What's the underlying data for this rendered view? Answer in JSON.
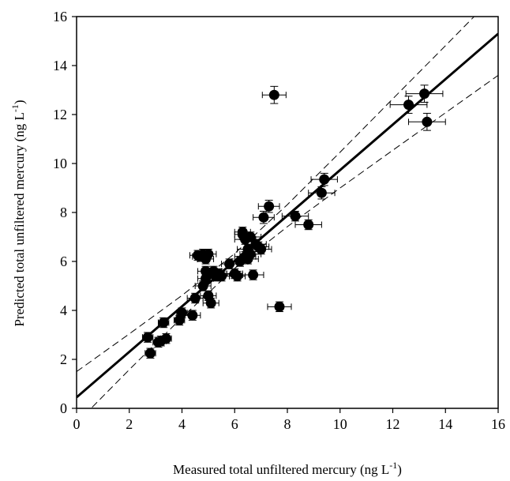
{
  "chart_data": {
    "type": "scatter",
    "xlabel": [
      "Measured total unfiltered mercury (ng L",
      "-1",
      ")"
    ],
    "ylabel": [
      "Predicted total unfiltered mercury (ng L",
      "-1",
      ")"
    ],
    "x": [
      2.7,
      2.8,
      3.1,
      3.2,
      3.3,
      3.4,
      3.9,
      4.0,
      4.4,
      4.5,
      4.7,
      4.8,
      4.9,
      4.9,
      4.9,
      5.0,
      5.0,
      5.1,
      5.1,
      5.2,
      5.3,
      5.4,
      5.5,
      5.8,
      6.0,
      6.1,
      6.2,
      6.3,
      6.4,
      6.4,
      6.5,
      6.5,
      6.6,
      6.7,
      6.8,
      6.9,
      7.0,
      7.1,
      7.3,
      7.5,
      7.7,
      8.3,
      8.8,
      9.3,
      9.4,
      12.6,
      13.2,
      13.3,
      4.6,
      6.3,
      6.6,
      4.8
    ],
    "y": [
      2.9,
      2.25,
      2.7,
      2.75,
      3.5,
      2.85,
      3.6,
      3.9,
      3.8,
      4.5,
      6.2,
      6.3,
      6.1,
      5.6,
      5.3,
      4.6,
      6.3,
      4.3,
      5.5,
      5.6,
      5.4,
      5.5,
      5.4,
      5.9,
      5.5,
      5.4,
      6.0,
      7.2,
      6.9,
      6.2,
      6.5,
      6.1,
      7.0,
      5.45,
      6.7,
      6.6,
      6.5,
      7.8,
      8.25,
      12.8,
      4.15,
      7.85,
      7.5,
      8.8,
      9.35,
      12.4,
      12.85,
      11.7,
      6.25,
      7.1,
      6.3,
      5.0
    ],
    "x_err": [
      0.2,
      0.2,
      0.2,
      0.2,
      0.2,
      0.2,
      0.2,
      0.2,
      0.3,
      0.3,
      0.3,
      0.3,
      0.3,
      0.3,
      0.3,
      0.3,
      0.3,
      0.3,
      0.3,
      0.3,
      0.3,
      0.3,
      0.3,
      0.3,
      0.3,
      0.3,
      0.3,
      0.3,
      0.4,
      0.4,
      0.4,
      0.4,
      0.4,
      0.4,
      0.4,
      0.4,
      0.4,
      0.4,
      0.4,
      0.45,
      0.45,
      0.5,
      0.5,
      0.5,
      0.5,
      0.7,
      0.7,
      0.7,
      0.3,
      0.3,
      0.4,
      0.3
    ],
    "y_err": [
      0.2,
      0.2,
      0.2,
      0.2,
      0.2,
      0.2,
      0.2,
      0.2,
      0.2,
      0.2,
      0.2,
      0.2,
      0.2,
      0.2,
      0.2,
      0.2,
      0.2,
      0.2,
      0.2,
      0.2,
      0.2,
      0.2,
      0.2,
      0.2,
      0.2,
      0.2,
      0.2,
      0.2,
      0.2,
      0.2,
      0.2,
      0.2,
      0.2,
      0.2,
      0.2,
      0.2,
      0.2,
      0.25,
      0.25,
      0.35,
      0.2,
      0.2,
      0.2,
      0.25,
      0.25,
      0.35,
      0.35,
      0.35,
      0.2,
      0.2,
      0.2,
      0.2
    ],
    "fit": {
      "x": [
        0,
        16
      ],
      "y": [
        0.45,
        15.3
      ]
    },
    "band_upper": {
      "x": [
        0,
        2,
        4,
        6,
        8,
        10,
        12,
        14,
        16
      ],
      "y": [
        1.5,
        3.04,
        4.61,
        6.32,
        8.32,
        10.46,
        12.64,
        14.81,
        17.0
      ]
    },
    "band_lower": {
      "x": [
        0,
        2,
        4,
        6,
        8,
        10,
        12,
        14,
        16
      ],
      "y": [
        -0.6,
        1.58,
        3.71,
        5.72,
        7.42,
        9.0,
        10.54,
        12.07,
        13.6
      ]
    },
    "xlim": [
      0,
      16
    ],
    "ylim": [
      0,
      16
    ],
    "xticks": [
      0,
      2,
      4,
      6,
      8,
      10,
      12,
      14,
      16
    ],
    "yticks": [
      0,
      2,
      4,
      6,
      8,
      10,
      12,
      14,
      16
    ],
    "color": "#000000"
  }
}
